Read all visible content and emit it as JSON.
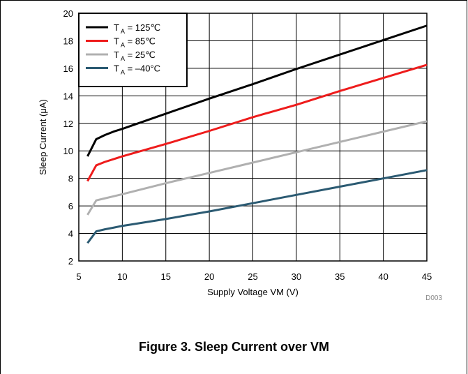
{
  "figure": {
    "caption": "Figure 3. Sleep Current over VM",
    "code": "D003"
  },
  "chart_data": {
    "type": "line",
    "xlabel": "Supply Voltage VM (V)",
    "ylabel": "Sleep Current (μA)",
    "xlim": [
      5,
      45
    ],
    "ylim": [
      2,
      20
    ],
    "xticks": [
      5,
      10,
      15,
      20,
      25,
      30,
      35,
      40,
      45
    ],
    "yticks": [
      2,
      4,
      6,
      8,
      10,
      12,
      14,
      16,
      18,
      20
    ],
    "grid": true,
    "legend_position": "top-left",
    "series": [
      {
        "name": "T_A = 125°C",
        "color": "#000000",
        "x": [
          6,
          7,
          8,
          9,
          10,
          15,
          20,
          25,
          30,
          35,
          40,
          45
        ],
        "y": [
          9.6,
          10.85,
          11.15,
          11.4,
          11.6,
          12.7,
          13.8,
          14.85,
          15.95,
          17.0,
          18.05,
          19.1
        ]
      },
      {
        "name": "T_A = 85°C",
        "color": "#ee1c1c",
        "x": [
          6,
          7,
          8,
          9,
          10,
          15,
          20,
          25,
          30,
          35,
          40,
          45
        ],
        "y": [
          7.8,
          8.95,
          9.2,
          9.4,
          9.6,
          10.5,
          11.45,
          12.45,
          13.35,
          14.35,
          15.3,
          16.25
        ]
      },
      {
        "name": "T_A = 25°C",
        "color": "#b0b0b0",
        "x": [
          6,
          7,
          8,
          9,
          10,
          15,
          20,
          25,
          30,
          35,
          40,
          45
        ],
        "y": [
          5.35,
          6.4,
          6.55,
          6.7,
          6.85,
          7.65,
          8.4,
          9.15,
          9.9,
          10.65,
          11.4,
          12.15
        ]
      },
      {
        "name": "T_A = –40°C",
        "color": "#2b5a72",
        "x": [
          6,
          7,
          8,
          9,
          10,
          15,
          20,
          25,
          30,
          35,
          40,
          45
        ],
        "y": [
          3.3,
          4.15,
          4.3,
          4.42,
          4.55,
          5.05,
          5.6,
          6.2,
          6.8,
          7.4,
          8.0,
          8.6
        ]
      }
    ],
    "legend": [
      {
        "sub": "A",
        "rest": " = 125℃"
      },
      {
        "sub": "A",
        "rest": " = 85℃"
      },
      {
        "sub": "A",
        "rest": " = 25℃"
      },
      {
        "sub": "A",
        "rest": " = –40°C"
      }
    ]
  }
}
